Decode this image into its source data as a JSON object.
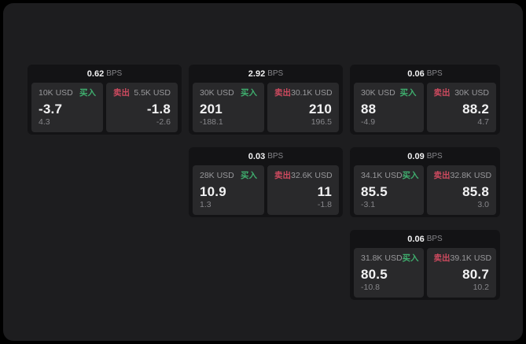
{
  "theme": {
    "background": "#000000",
    "surface": "#1d1d1f",
    "card": "#131315",
    "panel": "#29292b",
    "green": "#3fae6e",
    "red": "#cd4a5f",
    "text_primary": "#f2f2f3",
    "text_secondary": "#98989b",
    "text_muted": "#86868a"
  },
  "strings": {
    "bps_suffix": "BPS",
    "buy_label": "买入",
    "sell_label": "卖出"
  },
  "cards": [
    {
      "col": 1,
      "row": 1,
      "bps": "0.62",
      "buy": {
        "amount": "10K USD",
        "price": "-3.7",
        "delta": "4.3"
      },
      "sell": {
        "amount": "5.5K USD",
        "price": "-1.8",
        "delta": "-2.6"
      }
    },
    {
      "col": 2,
      "row": 1,
      "bps": "2.92",
      "buy": {
        "amount": "30K USD",
        "price": "201",
        "delta": "-188.1"
      },
      "sell": {
        "amount": "30.1K USD",
        "price": "210",
        "delta": "196.5"
      }
    },
    {
      "col": 3,
      "row": 1,
      "bps": "0.06",
      "buy": {
        "amount": "30K USD",
        "price": "88",
        "delta": "-4.9"
      },
      "sell": {
        "amount": "30K USD",
        "price": "88.2",
        "delta": "4.7"
      }
    },
    {
      "col": 2,
      "row": 2,
      "bps": "0.03",
      "buy": {
        "amount": "28K USD",
        "price": "10.9",
        "delta": "1.3"
      },
      "sell": {
        "amount": "32.6K USD",
        "price": "11",
        "delta": "-1.8"
      }
    },
    {
      "col": 3,
      "row": 2,
      "bps": "0.09",
      "buy": {
        "amount": "34.1K USD",
        "price": "85.5",
        "delta": "-3.1"
      },
      "sell": {
        "amount": "32.8K USD",
        "price": "85.8",
        "delta": "3.0"
      }
    },
    {
      "col": 3,
      "row": 3,
      "bps": "0.06",
      "buy": {
        "amount": "31.8K USD",
        "price": "80.5",
        "delta": "-10.8"
      },
      "sell": {
        "amount": "39.1K USD",
        "price": "80.7",
        "delta": "10.2"
      }
    }
  ]
}
